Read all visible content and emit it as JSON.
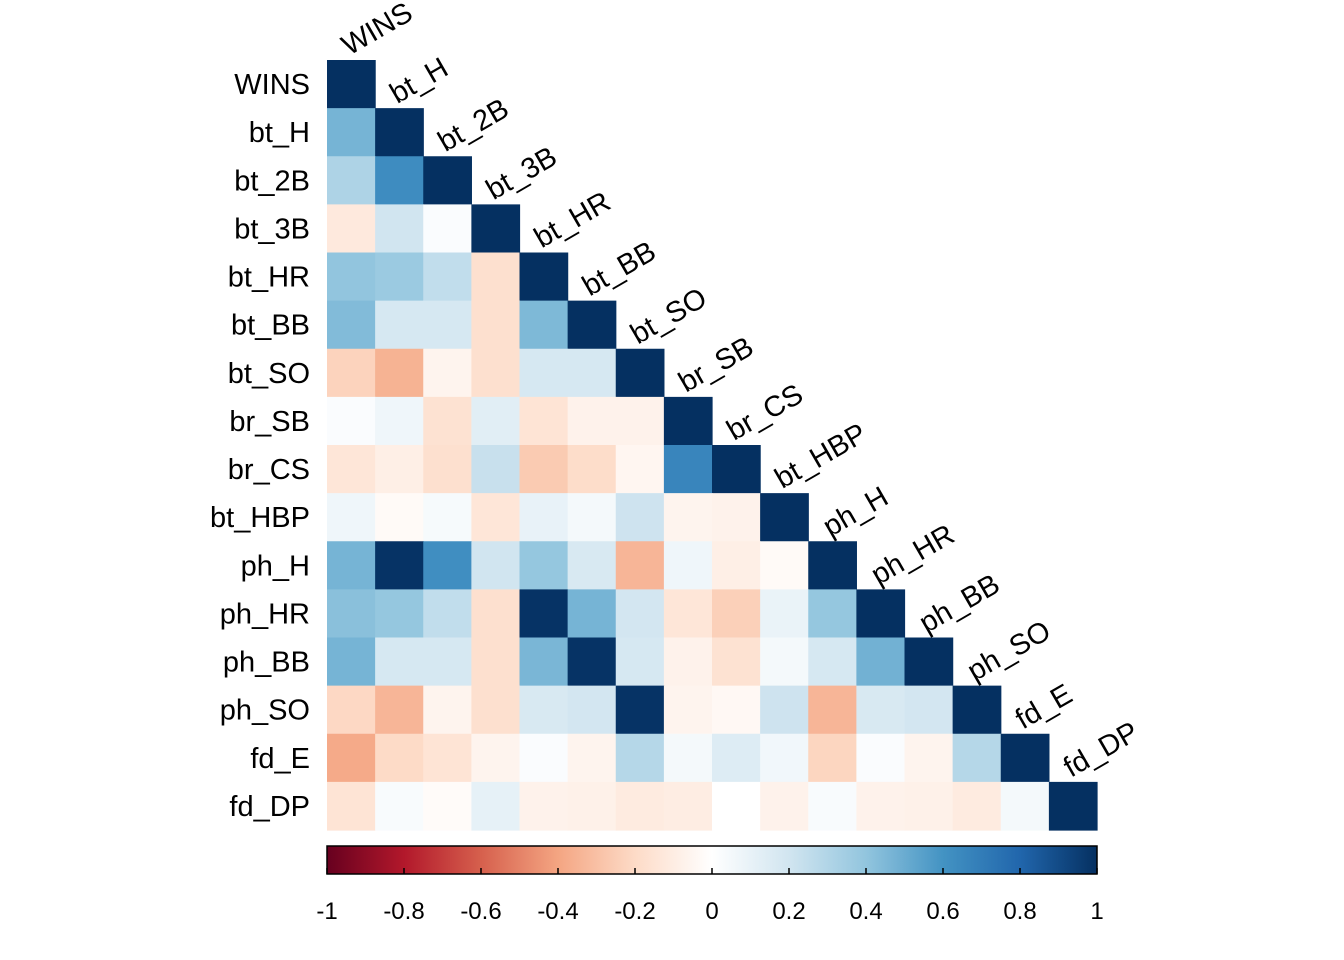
{
  "chart_data": {
    "type": "heatmap",
    "layout": "lower-triangle correlation matrix",
    "title": "",
    "variables": [
      "WINS",
      "bt_H",
      "bt_2B",
      "bt_3B",
      "bt_HR",
      "bt_BB",
      "bt_SO",
      "br_SB",
      "br_CS",
      "bt_HBP",
      "ph_H",
      "ph_HR",
      "ph_BB",
      "ph_SO",
      "fd_E",
      "fd_DP"
    ],
    "matrix": [
      [
        1
      ],
      [
        0.47,
        1
      ],
      [
        0.31,
        0.63,
        1
      ],
      [
        -0.12,
        0.2,
        0.02,
        1
      ],
      [
        0.4,
        0.37,
        0.25,
        -0.17,
        1
      ],
      [
        0.44,
        0.18,
        0.18,
        -0.17,
        0.45,
        1
      ],
      [
        -0.23,
        -0.35,
        -0.06,
        -0.17,
        0.18,
        0.18,
        1
      ],
      [
        0.02,
        0.07,
        -0.16,
        0.13,
        -0.15,
        -0.07,
        -0.07,
        1
      ],
      [
        -0.14,
        -0.09,
        -0.17,
        0.23,
        -0.26,
        -0.19,
        -0.05,
        0.66,
        1
      ],
      [
        0.07,
        -0.03,
        0.04,
        -0.14,
        0.1,
        0.05,
        0.21,
        -0.06,
        -0.07,
        1
      ],
      [
        0.47,
        0.99,
        0.62,
        0.2,
        0.39,
        0.17,
        -0.34,
        0.07,
        -0.09,
        -0.03,
        1
      ],
      [
        0.42,
        0.39,
        0.25,
        -0.17,
        0.99,
        0.47,
        0.19,
        -0.14,
        -0.24,
        0.09,
        0.39,
        1
      ],
      [
        0.47,
        0.18,
        0.18,
        -0.17,
        0.46,
        0.99,
        0.18,
        -0.07,
        -0.16,
        0.05,
        0.18,
        0.48,
        1
      ],
      [
        -0.21,
        -0.34,
        -0.06,
        -0.17,
        0.17,
        0.19,
        0.99,
        -0.06,
        -0.04,
        0.21,
        -0.34,
        0.17,
        0.19,
        1
      ],
      [
        -0.38,
        -0.2,
        -0.15,
        -0.06,
        0.02,
        -0.06,
        0.29,
        0.05,
        0.15,
        0.06,
        -0.22,
        0.02,
        -0.06,
        0.29,
        1
      ],
      [
        -0.15,
        0.03,
        -0.02,
        0.11,
        -0.07,
        -0.08,
        -0.11,
        -0.1,
        0.0,
        -0.07,
        0.03,
        -0.07,
        -0.08,
        -0.11,
        0.05,
        1
      ]
    ],
    "colorbar": {
      "range": [
        -1,
        1
      ],
      "ticks": [
        "-1",
        "-0.8",
        "-0.6",
        "-0.4",
        "-0.2",
        "0",
        "0.2",
        "0.4",
        "0.6",
        "0.8",
        "1"
      ],
      "orientation": "horizontal",
      "placement": "bottom"
    },
    "palette": [
      "#67001F",
      "#B2182B",
      "#D6604D",
      "#F4A582",
      "#FDDBC7",
      "#FFFFFF",
      "#D1E5F0",
      "#92C5DE",
      "#4393C3",
      "#2166AC",
      "#053061"
    ]
  }
}
